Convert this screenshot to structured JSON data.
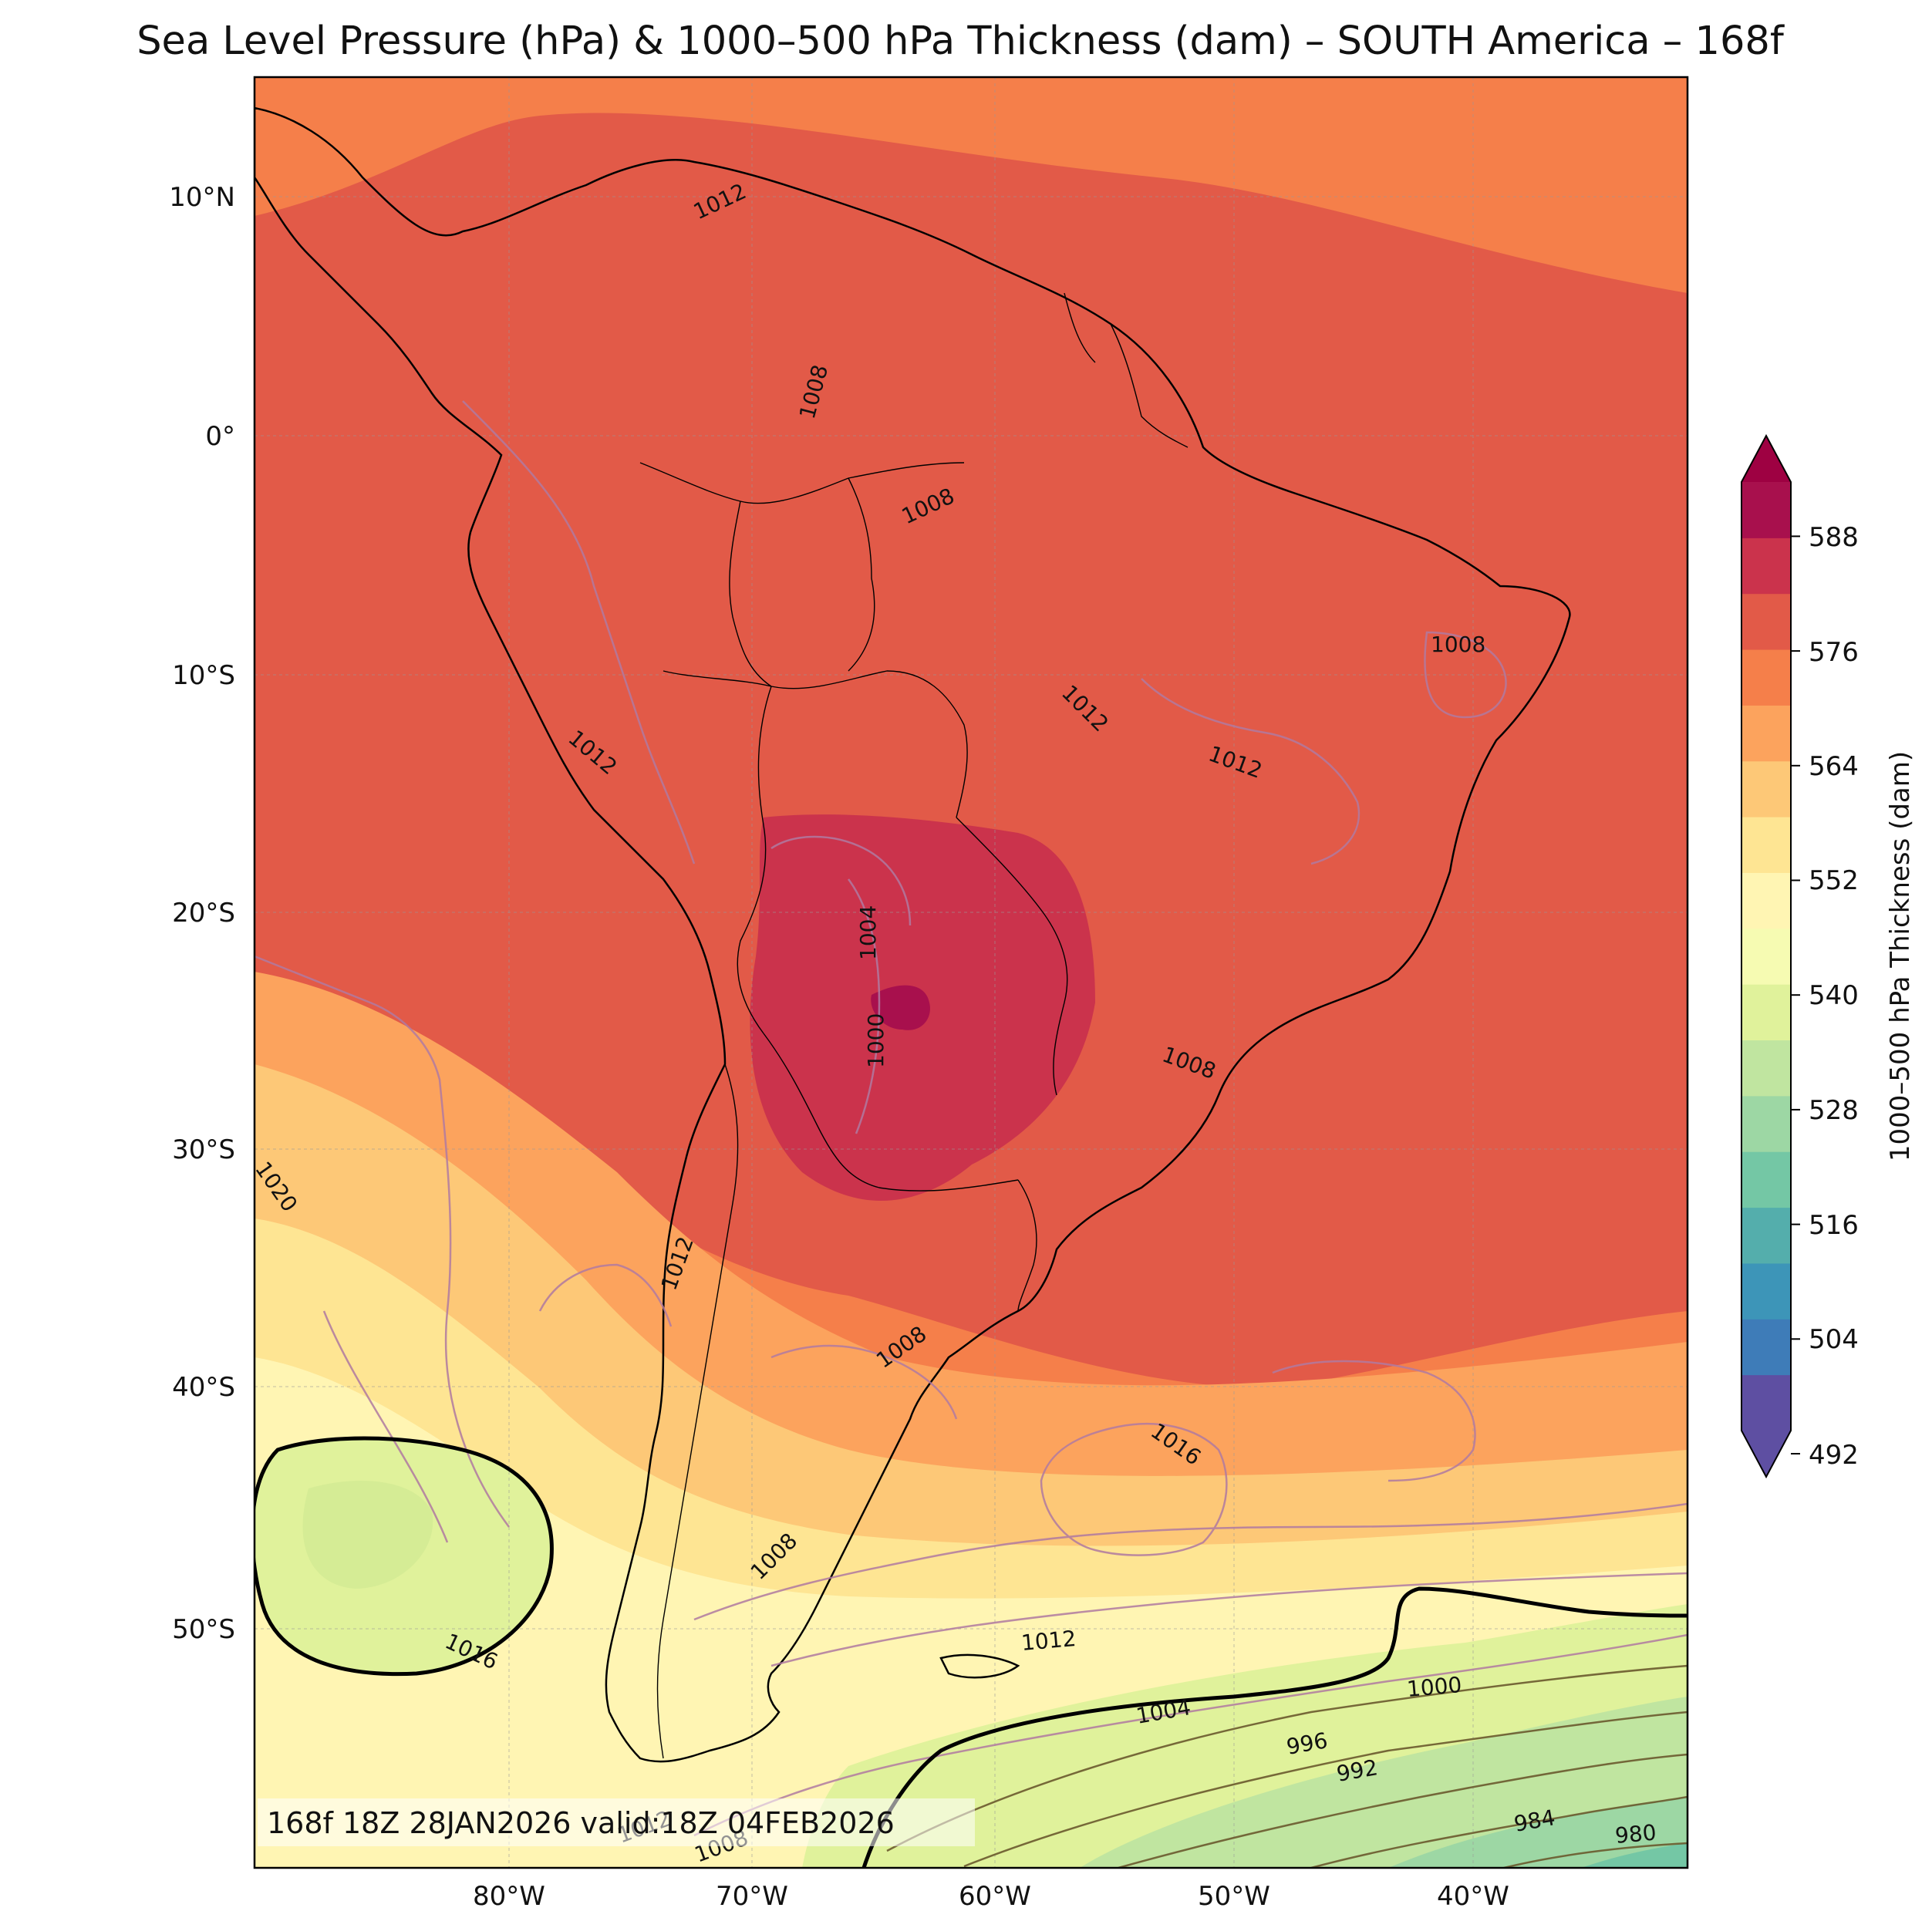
{
  "title": "Sea Level Pressure (hPa) & 1000–500 hPa Thickness (dam) – SOUTH America – 168f",
  "lat_labels": [
    "10°N",
    "0°",
    "10°S",
    "20°S",
    "30°S",
    "40°S",
    "50°S"
  ],
  "lon_labels": [
    "80°W",
    "70°W",
    "60°W",
    "50°W",
    "40°W"
  ],
  "colorbar": {
    "label": "1000–500 hPa Thickness (dam)",
    "ticks": [
      "492",
      "504",
      "516",
      "528",
      "540",
      "552",
      "564",
      "576",
      "588"
    ],
    "colors": [
      "#5e4fa2",
      "#3e7cb8",
      "#3d95b8",
      "#54aeac",
      "#74c7a5",
      "#9dd7a4",
      "#c0e5a0",
      "#e0f29b",
      "#f6fbb2",
      "#fff5b3",
      "#fee593",
      "#fdc877",
      "#fca35d",
      "#f57f4a",
      "#e25a48",
      "#cb334c",
      "#a8104d"
    ],
    "ext_low": "#5e4fa2",
    "ext_high": "#9e0142"
  },
  "isobar_labels": [
    {
      "text": "1012",
      "c": "#000"
    },
    {
      "text": "1008",
      "c": "#000"
    },
    {
      "text": "1008",
      "c": "#000"
    },
    {
      "text": "1008",
      "c": "#000"
    },
    {
      "text": "1012",
      "c": "#000"
    },
    {
      "text": "1012",
      "c": "#000"
    },
    {
      "text": "1012",
      "c": "#000"
    },
    {
      "text": "1004",
      "c": "#000"
    },
    {
      "text": "1000",
      "c": "#000"
    },
    {
      "text": "1008",
      "c": "#000"
    },
    {
      "text": "1020",
      "c": "#000"
    },
    {
      "text": "1012",
      "c": "#000"
    },
    {
      "text": "1008",
      "c": "#000"
    },
    {
      "text": "1016",
      "c": "#000"
    },
    {
      "text": "1008",
      "c": "#000"
    },
    {
      "text": "1016",
      "c": "#000"
    },
    {
      "text": "1012",
      "c": "#000"
    },
    {
      "text": "1000",
      "c": "#000"
    },
    {
      "text": "1004",
      "c": "#000"
    },
    {
      "text": "996",
      "c": "#000"
    },
    {
      "text": "992",
      "c": "#000"
    },
    {
      "text": "984",
      "c": "#000"
    },
    {
      "text": "980",
      "c": "#000"
    },
    {
      "text": "1012",
      "c": "#000"
    },
    {
      "text": "1008",
      "c": "#000"
    }
  ],
  "info_text": "168f 18Z 28JAN2026 valid:18Z 04FEB2026"
}
